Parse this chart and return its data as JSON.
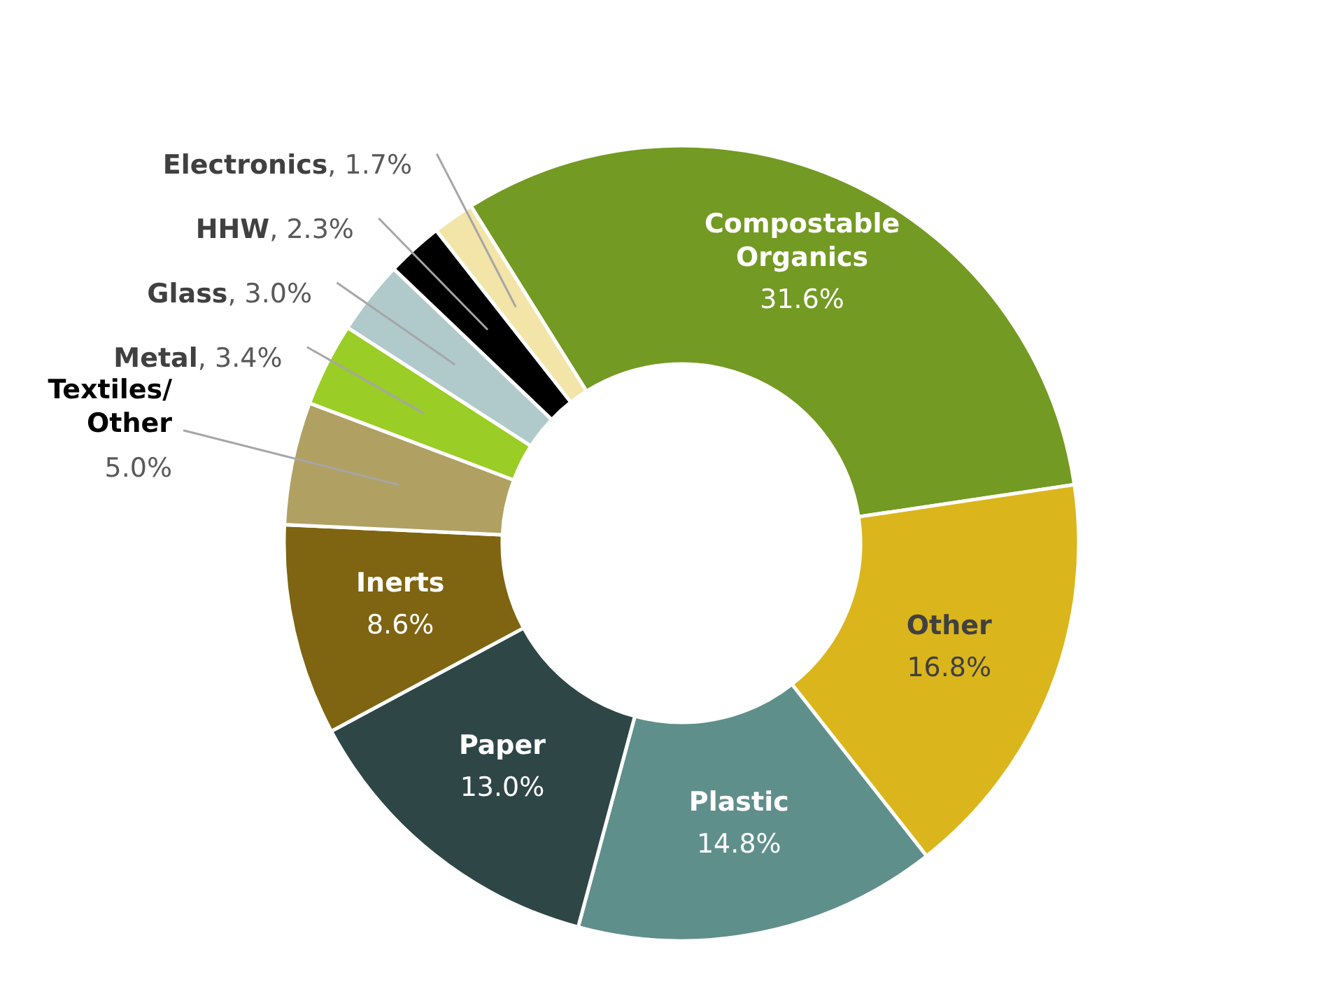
{
  "chart_data": {
    "type": "donut",
    "categories": [
      "Compostable Organics",
      "Other",
      "Plastic",
      "Paper",
      "Inerts",
      "Textiles/ Other",
      "Metal",
      "Glass",
      "HHW",
      "Electronics"
    ],
    "values": [
      31.6,
      16.8,
      14.8,
      13.0,
      8.6,
      5.0,
      3.4,
      3.0,
      2.3,
      1.7
    ],
    "colors": [
      "#739a22",
      "#dbb51c",
      "#5f8f8a",
      "#2e4646",
      "#7f6411",
      "#b0a062",
      "#9acd25",
      "#b0cacc",
      "#000000",
      "#f3e4a8"
    ],
    "value_labels": [
      "31.6%",
      "16.8%",
      "14.8%",
      "13.0%",
      "8.6%",
      "5.0%",
      ", 3.4%",
      ", 3.0%",
      ", 2.3%",
      ", 1.7%"
    ],
    "data_labels": true
  }
}
